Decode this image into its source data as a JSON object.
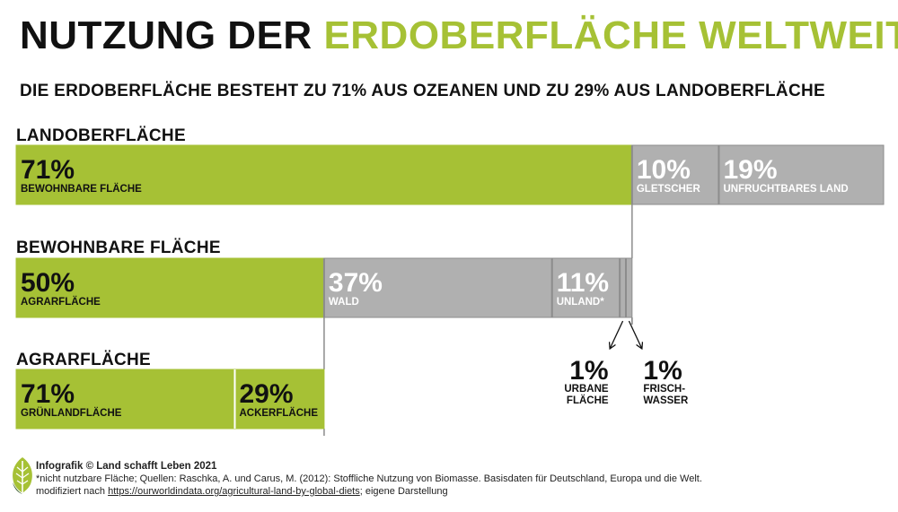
{
  "title": {
    "part1": "NUTZUNG DER",
    "part2": "ERDOBERFLÄCHE WELTWEIT"
  },
  "subtitle": "DIE ERDOBERFLÄCHE BESTEHT ZU 71% AUS OZEANEN UND ZU 29% AUS LANDOBERFLÄCHE",
  "colors": {
    "green": "#a6c135",
    "gray": "#b0b0b0",
    "gray_border": "#8c8c8c",
    "text_dark": "#111111",
    "text_light": "#ffffff"
  },
  "chart_data": {
    "type": "bar",
    "stacked": true,
    "orientation": "horizontal",
    "unit": "%",
    "bars": [
      {
        "label": "LANDOBERFLÄCHE",
        "segments": [
          {
            "value": 71,
            "text": "71%",
            "label": "BEWOHNBARE FLÄCHE",
            "color": "green"
          },
          {
            "value": 10,
            "text": "10%",
            "label": "GLETSCHER",
            "color": "gray"
          },
          {
            "value": 19,
            "text": "19%",
            "label": "UNFRUCHTBARES LAND",
            "color": "gray"
          }
        ]
      },
      {
        "label": "BEWOHNBARE FLÄCHE",
        "segments": [
          {
            "value": 50,
            "text": "50%",
            "label": "AGRARFLÄCHE",
            "color": "green"
          },
          {
            "value": 37,
            "text": "37%",
            "label": "WALD",
            "color": "gray"
          },
          {
            "value": 11,
            "text": "11%",
            "label": "UNLAND*",
            "color": "gray"
          },
          {
            "value": 1,
            "text": "",
            "label": "",
            "color": "gray"
          },
          {
            "value": 1,
            "text": "",
            "label": "",
            "color": "gray"
          }
        ],
        "callouts": [
          {
            "segment": 3,
            "text": "1%",
            "label_lines": [
              "URBANE",
              "FLÄCHE"
            ]
          },
          {
            "segment": 4,
            "text": "1%",
            "label_lines": [
              "FRISCH-",
              "WASSER"
            ]
          }
        ]
      },
      {
        "label": "AGRARFLÄCHE",
        "segments": [
          {
            "value": 71,
            "text": "71%",
            "label": "GRÜNLANDFLÄCHE",
            "color": "green"
          },
          {
            "value": 29,
            "text": "29%",
            "label": "ACKERFLÄCHE",
            "color": "green"
          }
        ]
      }
    ]
  },
  "footer": {
    "credit": "Infografik © Land schafft Leben 2021",
    "line2": "*nicht nutzbare Fläche; Quellen: Raschka, A. und Carus, M. (2012): Stoffliche Nutzung von Biomasse. Basisdaten für Deutschland, Europa und die Welt.",
    "line3_prefix": "modifiziert nach ",
    "line3_link": "https://ourworldindata.org/agricultural-land-by-global-diets",
    "line3_suffix": "; eigene Darstellung"
  },
  "logo_icon": "leaf-logo-icon"
}
